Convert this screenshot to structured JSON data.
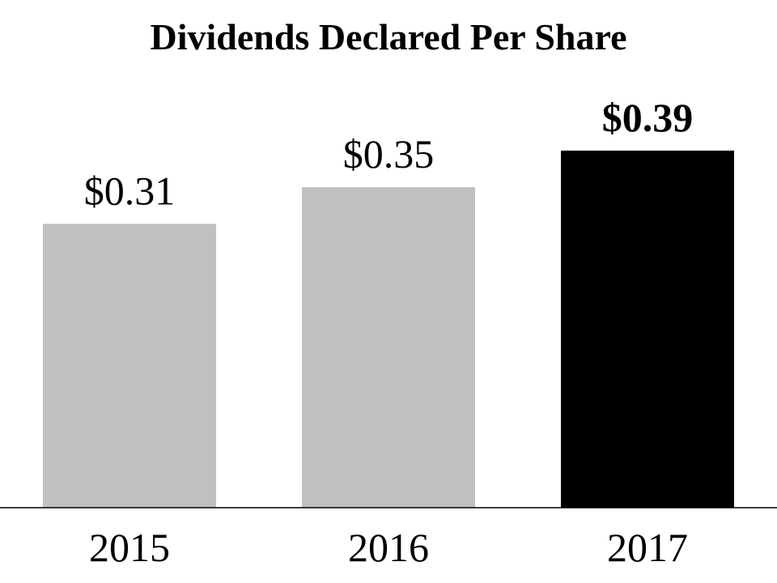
{
  "chart_data": {
    "type": "bar",
    "title": "Dividends Declared Per Share",
    "categories": [
      "2015",
      "2016",
      "2017"
    ],
    "values": [
      0.31,
      0.35,
      0.39
    ],
    "value_labels": [
      "$0.31",
      "$0.35",
      "$0.39"
    ],
    "bar_colors": [
      "#c0c0c0",
      "#c0c0c0",
      "#000000"
    ],
    "label_emphasis": [
      false,
      false,
      true
    ],
    "xlabel": "",
    "ylabel": "",
    "ylim": [
      0,
      0.39
    ],
    "grid": false,
    "legend": "none"
  }
}
